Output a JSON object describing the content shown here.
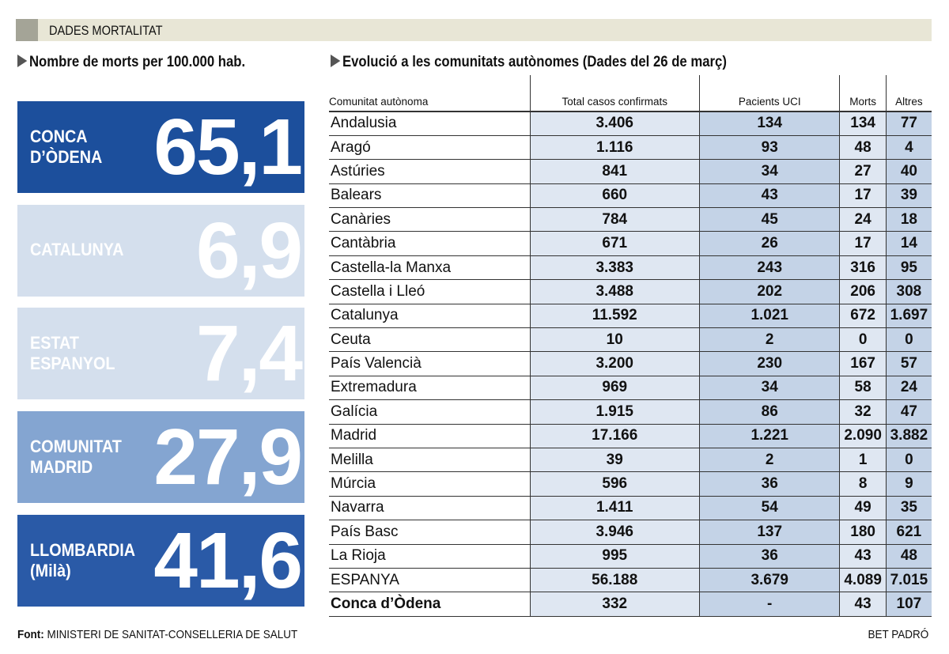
{
  "header": {
    "title": "DADES MORTALITAT"
  },
  "left": {
    "subtitle": "Nombre de morts per 100.000 hab.",
    "boxes": [
      {
        "label": "CONCA\nD’ÒDENA",
        "value": "65,1",
        "color": "#1c4f9c",
        "text_color": "#ffffff"
      },
      {
        "label": "CATALUNYA",
        "value": "6,9",
        "color": "#d4dfed",
        "text_color": "#ffffff"
      },
      {
        "label": "ESTAT\nESPANYOL",
        "value": "7,4",
        "color": "#d4dfed",
        "text_color": "#ffffff"
      },
      {
        "label": "COMUNITAT\nMADRID",
        "value": "27,9",
        "color": "#84a5d1",
        "text_color": "#ffffff"
      },
      {
        "label": "LLOMBARDIA\n(Milà)",
        "value": "41,6",
        "color": "#2a5aa7",
        "text_color": "#ffffff"
      }
    ]
  },
  "right": {
    "subtitle": "Evolució a les comunitats autònomes (Dades del 26 de març)"
  },
  "chart_data": {
    "type": "table",
    "columns": [
      "Comunitat autònoma",
      "Total casos confirmats",
      "Pacients UCI",
      "Morts",
      "Altres"
    ],
    "rows": [
      [
        "Andalusia",
        "3.406",
        "134",
        "134",
        "77"
      ],
      [
        "Aragó",
        "1.116",
        "93",
        "48",
        "4"
      ],
      [
        "Astúries",
        "841",
        "34",
        "27",
        "40"
      ],
      [
        "Balears",
        "660",
        "43",
        "17",
        "39"
      ],
      [
        "Canàries",
        "784",
        "45",
        "24",
        "18"
      ],
      [
        "Cantàbria",
        "671",
        "26",
        "17",
        "14"
      ],
      [
        "Castella-la Manxa",
        "3.383",
        "243",
        "316",
        "95"
      ],
      [
        "Castella i Lleó",
        "3.488",
        "202",
        "206",
        "308"
      ],
      [
        "Catalunya",
        "11.592",
        "1.021",
        "672",
        "1.697"
      ],
      [
        "Ceuta",
        "10",
        "2",
        "0",
        "0"
      ],
      [
        "País Valencià",
        "3.200",
        "230",
        "167",
        "57"
      ],
      [
        "Extremadura",
        "969",
        "34",
        "58",
        "24"
      ],
      [
        "Galícia",
        "1.915",
        "86",
        "32",
        "47"
      ],
      [
        "Madrid",
        "17.166",
        "1.221",
        "2.090",
        "3.882"
      ],
      [
        "Melilla",
        "39",
        "2",
        "1",
        "0"
      ],
      [
        "Múrcia",
        "596",
        "36",
        "8",
        "9"
      ],
      [
        "Navarra",
        "1.411",
        "54",
        "49",
        "35"
      ],
      [
        "País Basc",
        "3.946",
        "137",
        "180",
        "621"
      ],
      [
        "La Rioja",
        "995",
        "36",
        "43",
        "48"
      ],
      [
        "ESPANYA",
        "56.188",
        "3.679",
        "4.089",
        "7.015"
      ],
      [
        "Conca d’Òdena",
        "332",
        "-",
        "43",
        "107"
      ]
    ]
  },
  "footer": {
    "source_label": "Font:",
    "source": "MINISTERI DE SANITAT-CONSELLERIA DE SALUT",
    "author": "BET PADRÓ"
  }
}
